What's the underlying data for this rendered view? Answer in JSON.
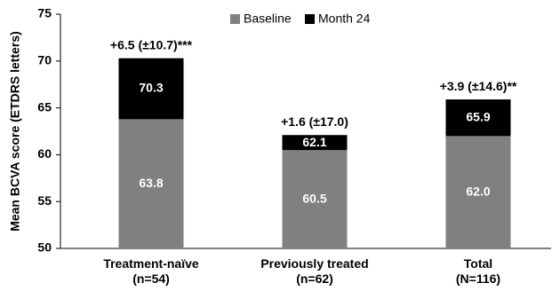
{
  "chart_data": {
    "type": "bar",
    "overlay": true,
    "ylabel": "Mean BCVA score (ETDRS letters)",
    "categories": [
      [
        "Treatment-naïve",
        "(n=54)"
      ],
      [
        "Previously treated",
        "(n=62)"
      ],
      [
        "Total",
        "(N=116)"
      ]
    ],
    "series": [
      {
        "name": "Baseline",
        "color": "#808080",
        "values": [
          63.8,
          60.5,
          62.0
        ],
        "value_labels": [
          "63.8",
          "60.5",
          "62.0"
        ]
      },
      {
        "name": "Month 24",
        "color": "#000000",
        "values": [
          70.3,
          62.1,
          65.9
        ],
        "value_labels": [
          "70.3",
          "62.1",
          "65.9"
        ]
      }
    ],
    "annotations": [
      "+6.5 (±10.7)***",
      "+1.6 (±17.0)",
      "+3.9 (±14.6)**"
    ],
    "ylim": [
      50,
      75
    ],
    "yticks": [
      50,
      55,
      60,
      65,
      70,
      75
    ],
    "grid": false
  }
}
